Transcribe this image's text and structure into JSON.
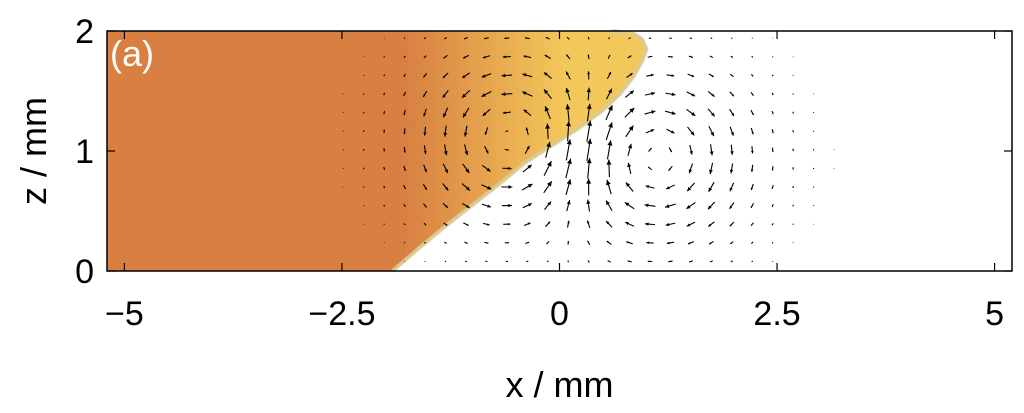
{
  "chart_data": {
    "type": "vector-field",
    "panel_label": "(a)",
    "xlabel": "x / mm",
    "ylabel": "z / mm",
    "xlim": [
      -5.2,
      5.2
    ],
    "ylim": [
      0,
      2
    ],
    "xticks": [
      -5,
      -2.5,
      0,
      2.5,
      5
    ],
    "xtick_labels": [
      "−5",
      "−2.5",
      "0",
      "2.5",
      "5"
    ],
    "yticks": [
      0,
      1,
      2
    ],
    "ytick_labels": [
      "0",
      "1",
      "2"
    ],
    "grid": false,
    "colors": {
      "fill_region": "#d87f41",
      "interface_yellow": "#f3c85a",
      "interface_blue": "#b8cde6",
      "arrows": "#000000",
      "frame": "#000000",
      "background": "#ffffff"
    },
    "interface": {
      "x": [
        -1.92,
        -1.6,
        -1.3,
        -1.0,
        -0.7,
        -0.4,
        -0.1,
        0.2,
        0.5,
        0.7,
        0.85,
        0.95,
        1.0,
        0.95,
        0.85,
        0.6
      ],
      "z": [
        0.0,
        0.2,
        0.38,
        0.55,
        0.72,
        0.9,
        1.04,
        1.18,
        1.34,
        1.48,
        1.62,
        1.75,
        1.85,
        1.93,
        1.98,
        2.0
      ]
    },
    "vortices": [
      {
        "x": -0.5,
        "z": 1.1,
        "sense": "counterclockwise"
      },
      {
        "x": 1.05,
        "z": 0.95,
        "sense": "clockwise"
      }
    ]
  }
}
